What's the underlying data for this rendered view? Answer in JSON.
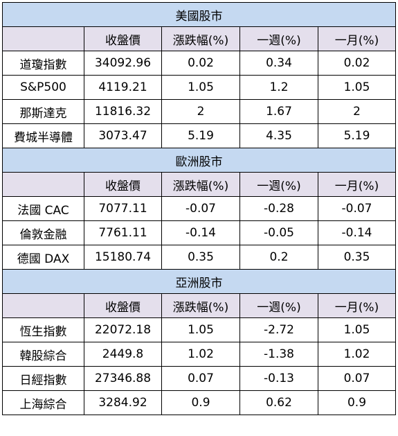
{
  "sections": [
    {
      "title": "美國股市",
      "headers": [
        "",
        "收盤價",
        "漲跌幅(%)",
        "一週(%)",
        "一月(%)"
      ],
      "rows": [
        [
          "道瓊指數",
          "34092.96",
          "0.02",
          "0.34",
          "0.02"
        ],
        [
          "S&P500",
          "4119.21",
          "1.05",
          "1.2",
          "1.05"
        ],
        [
          "那斯達克",
          "11816.32",
          "2",
          "1.67",
          "2"
        ],
        [
          "費城半導體",
          "3073.47",
          "5.19",
          "4.35",
          "5.19"
        ]
      ]
    },
    {
      "title": "歐洲股市",
      "headers": [
        "",
        "收盤價",
        "漲跌幅(%)",
        "一週(%)",
        "一月(%)"
      ],
      "rows": [
        [
          "法國 CAC",
          "7077.11",
          "-0.07",
          "-0.28",
          "-0.07"
        ],
        [
          "倫敦金融",
          "7761.11",
          "-0.14",
          "-0.05",
          "-0.14"
        ],
        [
          "德國 DAX",
          "15180.74",
          "0.35",
          "0.2",
          "0.35"
        ]
      ]
    },
    {
      "title": "亞洲股市",
      "headers": [
        "",
        "收盤價",
        "漲跌幅(%)",
        "一週(%)",
        "一月(%)"
      ],
      "rows": [
        [
          "恆生指數",
          "22072.18",
          "1.05",
          "-2.72",
          "1.05"
        ],
        [
          "韓股綜合",
          "2449.8",
          "1.02",
          "-1.38",
          "1.02"
        ],
        [
          "日經指數",
          "27346.88",
          "0.07",
          "-0.13",
          "0.07"
        ],
        [
          "上海綜合",
          "3284.92",
          "0.9",
          "0.62",
          "0.9"
        ]
      ]
    }
  ],
  "colors": {
    "section_bg": "#c5d9f1",
    "header_bg": "#e4dfec",
    "border": "#000000"
  }
}
